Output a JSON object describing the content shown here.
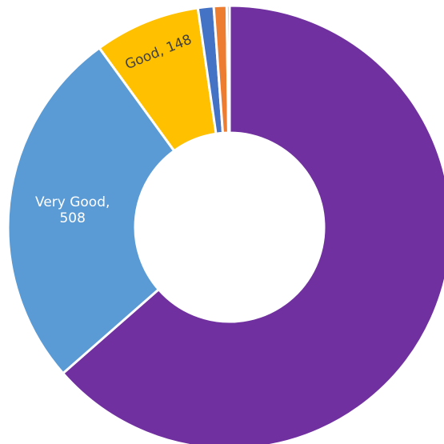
{
  "chart_data": {
    "type": "pie",
    "variant": "donut",
    "title": "",
    "start_angle_deg": 0,
    "direction": "clockwise",
    "slices": [
      {
        "name": "",
        "value": 1220,
        "color": "#7030A0",
        "label": ""
      },
      {
        "name": "Very Good",
        "value": 508,
        "color": "#5B9BD5",
        "label": "Very Good, 508",
        "label_lines": [
          "Very Good,",
          "508"
        ]
      },
      {
        "name": "Good",
        "value": 148,
        "color": "#FFC000",
        "label": "Good, 148",
        "label_lines": [
          "Good, 148"
        ]
      },
      {
        "name": "",
        "value": 22,
        "color": "#4472C4",
        "label": ""
      },
      {
        "name": "",
        "value": 18,
        "color": "#ED7D31",
        "label": ""
      },
      {
        "name": "",
        "value": 4,
        "color": "#A5A5A5",
        "label": ""
      }
    ],
    "data_labels": [
      {
        "slice": 1,
        "lines": [
          "Very Good,",
          "508"
        ],
        "text_color": "#ffffff",
        "rotated": false
      },
      {
        "slice": 2,
        "lines": [
          "Good, 148"
        ],
        "text_color": "#404040",
        "rotated": true
      }
    ]
  }
}
